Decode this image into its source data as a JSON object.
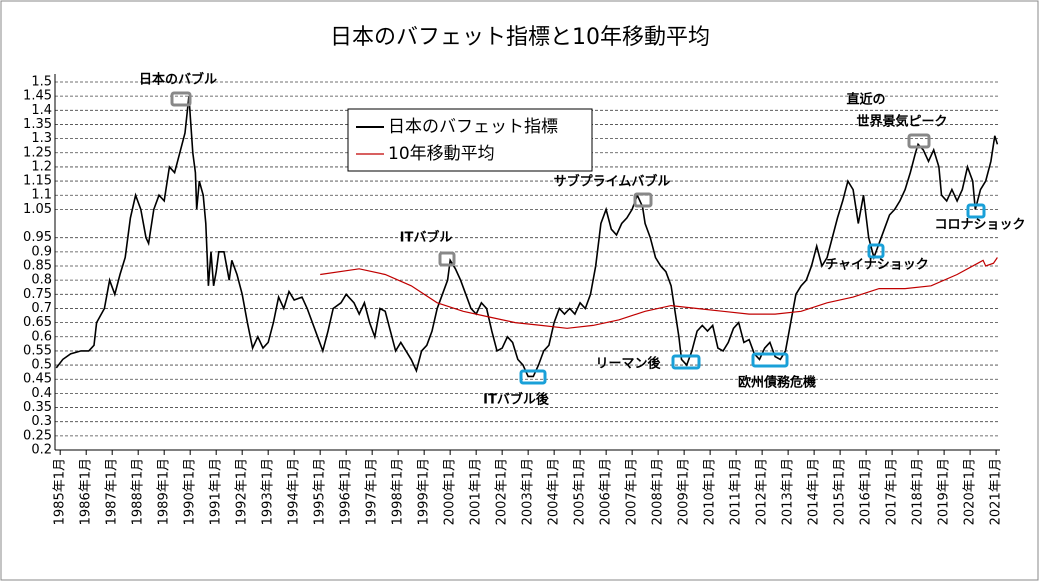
{
  "chart_data": {
    "type": "line",
    "title": "日本のバフェット指標と10年移動平均",
    "xlim": [
      1984.8,
      2021.15
    ],
    "xticks": [
      {
        "value": 1985,
        "label": "1985年1月"
      },
      {
        "value": 1986,
        "label": "1986年1月"
      },
      {
        "value": 1987,
        "label": "1987年1月"
      },
      {
        "value": 1988,
        "label": "1988年1月"
      },
      {
        "value": 1989,
        "label": "1989年1月"
      },
      {
        "value": 1990,
        "label": "1990年1月"
      },
      {
        "value": 1991,
        "label": "1991年1月"
      },
      {
        "value": 1992,
        "label": "1992年1月"
      },
      {
        "value": 1993,
        "label": "1993年1月"
      },
      {
        "value": 1994,
        "label": "1994年1月"
      },
      {
        "value": 1995,
        "label": "1995年1月"
      },
      {
        "value": 1996,
        "label": "1996年1月"
      },
      {
        "value": 1997,
        "label": "1997年1月"
      },
      {
        "value": 1998,
        "label": "1998年1月"
      },
      {
        "value": 1999,
        "label": "1999年1月"
      },
      {
        "value": 2000,
        "label": "2000年1月"
      },
      {
        "value": 2001,
        "label": "2001年1月"
      },
      {
        "value": 2002,
        "label": "2002年1月"
      },
      {
        "value": 2003,
        "label": "2003年1月"
      },
      {
        "value": 2004,
        "label": "2004年1月"
      },
      {
        "value": 2005,
        "label": "2005年1月"
      },
      {
        "value": 2006,
        "label": "2006年1月"
      },
      {
        "value": 2007,
        "label": "2007年1月"
      },
      {
        "value": 2008,
        "label": "2008年1月"
      },
      {
        "value": 2009,
        "label": "2009年1月"
      },
      {
        "value": 2010,
        "label": "2010年1月"
      },
      {
        "value": 2011,
        "label": "2011年1月"
      },
      {
        "value": 2012,
        "label": "2012年1月"
      },
      {
        "value": 2013,
        "label": "2013年1月"
      },
      {
        "value": 2014,
        "label": "2014年1月"
      },
      {
        "value": 2015,
        "label": "2015年1月"
      },
      {
        "value": 2016,
        "label": "2016年1月"
      },
      {
        "value": 2017,
        "label": "2017年1月"
      },
      {
        "value": 2018,
        "label": "2018年1月"
      },
      {
        "value": 2019,
        "label": "2019年1月"
      },
      {
        "value": 2020,
        "label": "2020年1月"
      },
      {
        "value": 2021,
        "label": "2021年1月"
      }
    ],
    "ylim": [
      0.2,
      1.5
    ],
    "yticks": [
      0.2,
      0.25,
      0.3,
      0.35,
      0.4,
      0.45,
      0.5,
      0.55,
      0.6,
      0.65,
      0.7,
      0.75,
      0.8,
      0.85,
      0.9,
      0.95,
      1.05,
      1.1,
      1.15,
      1.2,
      1.25,
      1.3,
      1.35,
      1.4,
      1.45,
      1.5
    ],
    "grid": true,
    "legend": "upper center",
    "series": [
      {
        "name": "日本のバフェット指標",
        "color": "#000000",
        "x": [
          1984.85,
          1985.1,
          1985.4,
          1985.8,
          1986.1,
          1986.3,
          1986.4,
          1986.7,
          1986.9,
          1987.1,
          1987.3,
          1987.5,
          1987.7,
          1987.9,
          1988.1,
          1988.3,
          1988.4,
          1988.6,
          1988.8,
          1989.0,
          1989.2,
          1989.4,
          1989.6,
          1989.8,
          1989.95,
          1990.1,
          1990.2,
          1990.25,
          1990.35,
          1990.5,
          1990.6,
          1990.7,
          1990.8,
          1990.9,
          1991.0,
          1991.1,
          1991.3,
          1991.5,
          1991.6,
          1991.8,
          1992.0,
          1992.2,
          1992.4,
          1992.6,
          1992.8,
          1993.0,
          1993.2,
          1993.4,
          1993.6,
          1993.8,
          1994.0,
          1994.3,
          1994.5,
          1994.7,
          1994.9,
          1995.1,
          1995.3,
          1995.5,
          1995.8,
          1996.0,
          1996.3,
          1996.5,
          1996.7,
          1996.9,
          1997.1,
          1997.3,
          1997.5,
          1997.7,
          1997.9,
          1998.1,
          1998.3,
          1998.5,
          1998.7,
          1998.9,
          1999.1,
          1999.3,
          1999.5,
          1999.7,
          1999.9,
          2000.0,
          2000.2,
          2000.4,
          2000.6,
          2000.8,
          2001.0,
          2001.2,
          2001.4,
          2001.6,
          2001.8,
          2002.0,
          2002.2,
          2002.4,
          2002.6,
          2002.8,
          2003.0,
          2003.2,
          2003.4,
          2003.6,
          2003.8,
          2004.0,
          2004.2,
          2004.4,
          2004.6,
          2004.8,
          2005.0,
          2005.2,
          2005.4,
          2005.6,
          2005.8,
          2006.0,
          2006.2,
          2006.4,
          2006.6,
          2006.8,
          2007.0,
          2007.2,
          2007.4,
          2007.5,
          2007.7,
          2007.9,
          2008.1,
          2008.3,
          2008.5,
          2008.6,
          2008.8,
          2008.9,
          2009.1,
          2009.3,
          2009.5,
          2009.7,
          2009.9,
          2010.1,
          2010.3,
          2010.5,
          2010.7,
          2010.9,
          2011.1,
          2011.3,
          2011.5,
          2011.7,
          2011.9,
          2012.1,
          2012.3,
          2012.5,
          2012.7,
          2012.9,
          2013.1,
          2013.3,
          2013.5,
          2013.7,
          2013.9,
          2014.1,
          2014.3,
          2014.5,
          2014.7,
          2014.9,
          2015.1,
          2015.3,
          2015.5,
          2015.7,
          2015.9,
          2016.1,
          2016.3,
          2016.5,
          2016.7,
          2016.9,
          2017.1,
          2017.3,
          2017.5,
          2017.7,
          2017.9,
          2018.0,
          2018.2,
          2018.4,
          2018.6,
          2018.8,
          2018.9,
          2019.1,
          2019.3,
          2019.5,
          2019.7,
          2019.9,
          2020.1,
          2020.2,
          2020.4,
          2020.6,
          2020.8,
          2020.95,
          2021.05
        ],
        "values": [
          0.49,
          0.52,
          0.54,
          0.55,
          0.55,
          0.57,
          0.65,
          0.7,
          0.8,
          0.75,
          0.82,
          0.88,
          1.02,
          1.1,
          1.05,
          0.95,
          0.93,
          1.05,
          1.1,
          1.08,
          1.2,
          1.18,
          1.25,
          1.32,
          1.45,
          1.25,
          1.18,
          1.05,
          1.15,
          1.1,
          1.0,
          0.78,
          0.9,
          0.78,
          0.83,
          0.9,
          0.9,
          0.8,
          0.87,
          0.82,
          0.75,
          0.65,
          0.56,
          0.6,
          0.56,
          0.58,
          0.65,
          0.74,
          0.7,
          0.76,
          0.73,
          0.74,
          0.7,
          0.65,
          0.6,
          0.55,
          0.62,
          0.7,
          0.72,
          0.75,
          0.72,
          0.68,
          0.72,
          0.65,
          0.6,
          0.7,
          0.69,
          0.62,
          0.55,
          0.58,
          0.55,
          0.52,
          0.48,
          0.55,
          0.57,
          0.62,
          0.7,
          0.75,
          0.8,
          0.87,
          0.84,
          0.8,
          0.75,
          0.7,
          0.68,
          0.72,
          0.7,
          0.62,
          0.55,
          0.56,
          0.6,
          0.58,
          0.52,
          0.5,
          0.46,
          0.46,
          0.5,
          0.55,
          0.57,
          0.65,
          0.7,
          0.68,
          0.7,
          0.68,
          0.72,
          0.7,
          0.75,
          0.85,
          1.0,
          1.05,
          0.98,
          0.96,
          1.0,
          1.02,
          1.05,
          1.1,
          1.06,
          1.0,
          0.95,
          0.88,
          0.85,
          0.83,
          0.78,
          0.72,
          0.6,
          0.52,
          0.5,
          0.55,
          0.62,
          0.64,
          0.62,
          0.64,
          0.56,
          0.55,
          0.58,
          0.63,
          0.65,
          0.58,
          0.59,
          0.54,
          0.52,
          0.56,
          0.58,
          0.53,
          0.52,
          0.55,
          0.65,
          0.75,
          0.78,
          0.8,
          0.85,
          0.92,
          0.85,
          0.88,
          0.95,
          1.02,
          1.08,
          1.15,
          1.12,
          1.0,
          1.1,
          0.95,
          0.88,
          0.93,
          0.98,
          1.03,
          1.05,
          1.08,
          1.12,
          1.18,
          1.25,
          1.28,
          1.26,
          1.22,
          1.26,
          1.2,
          1.1,
          1.08,
          1.12,
          1.08,
          1.12,
          1.2,
          1.15,
          1.05,
          1.12,
          1.15,
          1.22,
          1.31,
          1.28
        ]
      },
      {
        "name": "10年移動平均",
        "color": "#c00000",
        "x": [
          1995.0,
          1996.5,
          1997.5,
          1998.5,
          1999.5,
          2000.5,
          2001.5,
          2002.5,
          2003.5,
          2004.5,
          2005.5,
          2006.5,
          2007.5,
          2008.5,
          2009.5,
          2010.5,
          2011.5,
          2012.5,
          2013.5,
          2014.5,
          2015.5,
          2016.5,
          2017.5,
          2018.5,
          2019.5,
          2020.3,
          2020.5,
          2020.6,
          2020.9,
          2021.05
        ],
        "values": [
          0.82,
          0.84,
          0.82,
          0.78,
          0.72,
          0.69,
          0.67,
          0.65,
          0.64,
          0.63,
          0.64,
          0.66,
          0.69,
          0.71,
          0.7,
          0.69,
          0.68,
          0.68,
          0.69,
          0.72,
          0.74,
          0.77,
          0.77,
          0.78,
          0.82,
          0.86,
          0.87,
          0.85,
          0.86,
          0.88
        ]
      }
    ],
    "annotations": [
      "日本のバブル",
      "ITバブル",
      "ITバブル後",
      "サブプライムバブル",
      "リーマン後",
      "欧州債務危機",
      "直近の",
      "世界景気ピーク",
      "チャイナショック",
      "コロナショック"
    ]
  }
}
